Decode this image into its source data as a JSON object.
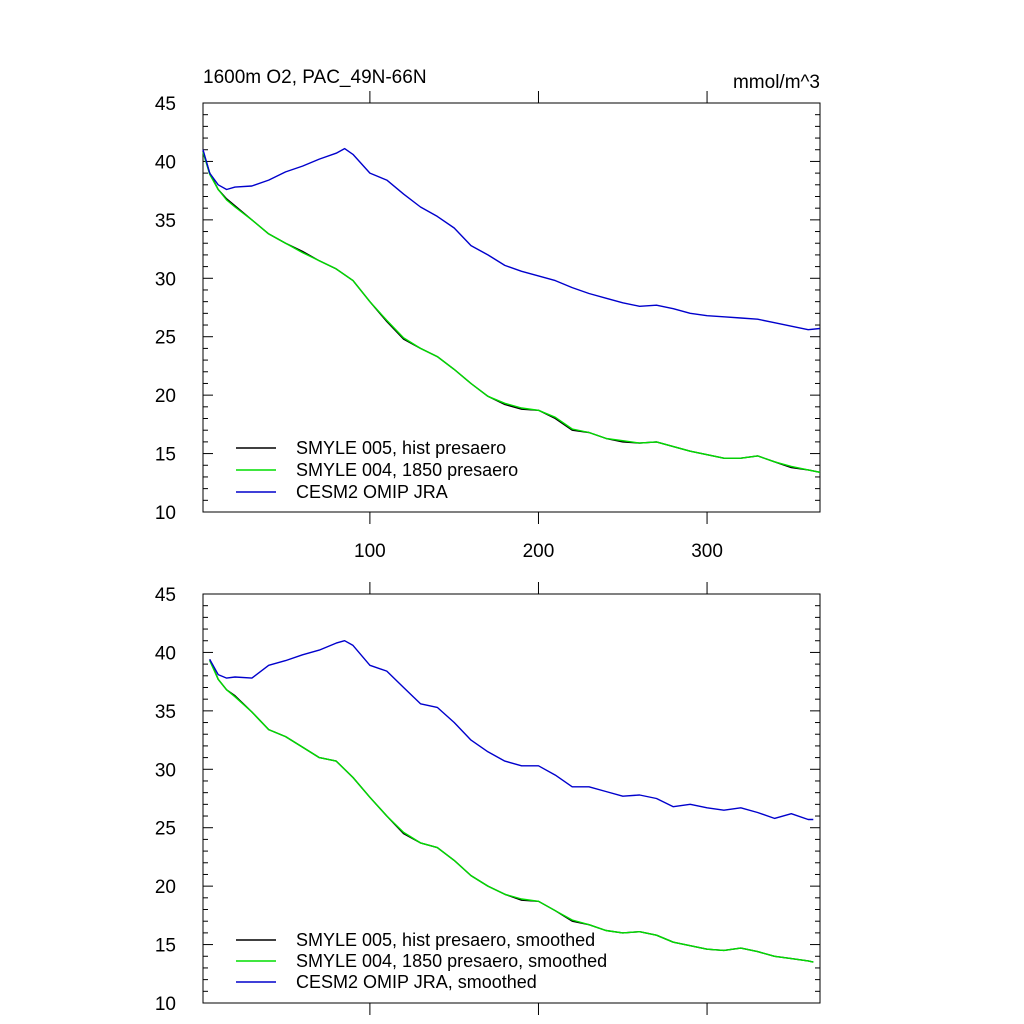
{
  "figure": {
    "title_left": "1600m O2, PAC_49N-66N",
    "title_right": "mmol/m^3"
  },
  "chart_data": [
    {
      "type": "line",
      "panel": "top",
      "title": "1600m O2, PAC_49N-66N",
      "units": "mmol/m^3",
      "xlim": [
        1,
        367
      ],
      "ylim": [
        10,
        45
      ],
      "x_ticks": [
        100,
        200,
        300
      ],
      "x_tick_labels": [
        "100",
        "200",
        "300"
      ],
      "y_ticks": [
        10,
        15,
        20,
        25,
        30,
        35,
        40,
        45
      ],
      "y_tick_labels": [
        "10",
        "15",
        "20",
        "25",
        "30",
        "35",
        "40",
        "45"
      ],
      "legend_position": "bottom-left",
      "series": [
        {
          "name": "SMYLE 005, hist presaero",
          "color": "#000000",
          "x": [
            1,
            5,
            10,
            15,
            20,
            30,
            40,
            50,
            60,
            70,
            80,
            90,
            100,
            110,
            120,
            130,
            140,
            150,
            160,
            170,
            180,
            190,
            200,
            210,
            220,
            230,
            240,
            250,
            260,
            270,
            280,
            290,
            300,
            310,
            320,
            330,
            340,
            350,
            360,
            367
          ],
          "values": [
            40.9,
            39.0,
            37.6,
            36.8,
            36.2,
            35.0,
            33.8,
            33.0,
            32.3,
            31.5,
            30.8,
            29.8,
            28.0,
            26.3,
            24.8,
            24.0,
            23.3,
            22.2,
            21.0,
            19.9,
            19.2,
            18.8,
            18.7,
            18.0,
            17.0,
            16.8,
            16.3,
            16.0,
            15.9,
            16.0,
            15.6,
            15.2,
            14.9,
            14.6,
            14.6,
            14.8,
            14.3,
            13.8,
            13.6,
            13.4
          ]
        },
        {
          "name": "SMYLE 004, 1850 presaero",
          "color": "#00dd00",
          "x": [
            1,
            5,
            10,
            15,
            20,
            30,
            40,
            50,
            60,
            70,
            80,
            90,
            100,
            110,
            120,
            130,
            140,
            150,
            160,
            170,
            180,
            190,
            200,
            210,
            220,
            230,
            240,
            250,
            260,
            270,
            280,
            290,
            300,
            310,
            320,
            330,
            340,
            350,
            360,
            367
          ],
          "values": [
            40.8,
            38.9,
            37.6,
            36.7,
            36.1,
            35.0,
            33.8,
            33.0,
            32.2,
            31.5,
            30.8,
            29.8,
            28.0,
            26.4,
            24.9,
            24.0,
            23.3,
            22.2,
            21.0,
            19.9,
            19.3,
            18.9,
            18.7,
            18.1,
            17.1,
            16.8,
            16.3,
            16.1,
            15.9,
            16.0,
            15.6,
            15.2,
            14.9,
            14.6,
            14.6,
            14.8,
            14.3,
            13.9,
            13.6,
            13.4
          ]
        },
        {
          "name": "CESM2 OMIP JRA",
          "color": "#0000cc",
          "x": [
            1,
            5,
            10,
            15,
            20,
            30,
            40,
            50,
            60,
            70,
            80,
            85,
            90,
            100,
            110,
            120,
            130,
            140,
            150,
            160,
            170,
            180,
            190,
            200,
            210,
            220,
            230,
            240,
            250,
            260,
            270,
            280,
            290,
            300,
            310,
            320,
            330,
            340,
            350,
            360,
            367
          ],
          "values": [
            41.0,
            39.0,
            38.0,
            37.6,
            37.8,
            37.9,
            38.4,
            39.1,
            39.6,
            40.2,
            40.7,
            41.1,
            40.6,
            39.0,
            38.4,
            37.2,
            36.1,
            35.3,
            34.3,
            32.8,
            32.0,
            31.1,
            30.6,
            30.2,
            29.8,
            29.2,
            28.7,
            28.3,
            27.9,
            27.6,
            27.7,
            27.4,
            27.0,
            26.8,
            26.7,
            26.6,
            26.5,
            26.2,
            25.9,
            25.6,
            25.7
          ]
        }
      ]
    },
    {
      "type": "line",
      "panel": "bottom",
      "xlim": [
        1,
        367
      ],
      "ylim": [
        10,
        45
      ],
      "x_ticks": [
        100,
        200,
        300
      ],
      "y_ticks": [
        10,
        15,
        20,
        25,
        30,
        35,
        40,
        45
      ],
      "y_tick_labels": [
        "10",
        "15",
        "20",
        "25",
        "30",
        "35",
        "40",
        "45"
      ],
      "legend_position": "bottom-left",
      "series": [
        {
          "name": "SMYLE 005, hist presaero, smoothed",
          "color": "#000000",
          "x": [
            5,
            10,
            15,
            20,
            30,
            40,
            50,
            60,
            70,
            80,
            90,
            100,
            110,
            120,
            130,
            140,
            150,
            160,
            170,
            180,
            190,
            200,
            210,
            220,
            230,
            240,
            250,
            260,
            270,
            280,
            290,
            300,
            310,
            320,
            330,
            340,
            350,
            360,
            363
          ],
          "values": [
            39.4,
            37.7,
            36.8,
            36.3,
            34.9,
            33.4,
            32.8,
            31.9,
            31.0,
            30.7,
            29.3,
            27.6,
            26.0,
            24.5,
            23.7,
            23.3,
            22.2,
            20.9,
            20.0,
            19.3,
            18.8,
            18.7,
            17.9,
            17.0,
            16.7,
            16.2,
            16.0,
            16.1,
            15.8,
            15.2,
            14.9,
            14.6,
            14.5,
            14.7,
            14.4,
            14.0,
            13.8,
            13.6,
            13.5
          ]
        },
        {
          "name": "SMYLE 004, 1850 presaero, smoothed",
          "color": "#00dd00",
          "x": [
            5,
            10,
            15,
            20,
            30,
            40,
            50,
            60,
            70,
            80,
            90,
            100,
            110,
            120,
            130,
            140,
            150,
            160,
            170,
            180,
            190,
            200,
            210,
            220,
            230,
            240,
            250,
            260,
            270,
            280,
            290,
            300,
            310,
            320,
            330,
            340,
            350,
            360,
            363
          ],
          "values": [
            39.3,
            37.7,
            36.8,
            36.2,
            34.9,
            33.4,
            32.8,
            31.9,
            31.0,
            30.7,
            29.3,
            27.6,
            26.0,
            24.6,
            23.7,
            23.3,
            22.2,
            20.9,
            20.0,
            19.3,
            18.9,
            18.7,
            17.9,
            17.1,
            16.7,
            16.2,
            16.0,
            16.1,
            15.8,
            15.2,
            14.9,
            14.6,
            14.5,
            14.7,
            14.4,
            14.0,
            13.8,
            13.6,
            13.5
          ]
        },
        {
          "name": "CESM2 OMIP JRA, smoothed",
          "color": "#0000cc",
          "x": [
            5,
            10,
            15,
            20,
            30,
            40,
            50,
            60,
            70,
            80,
            85,
            90,
            100,
            110,
            120,
            130,
            140,
            150,
            160,
            170,
            180,
            190,
            200,
            210,
            220,
            230,
            240,
            250,
            260,
            270,
            280,
            290,
            300,
            310,
            320,
            330,
            340,
            350,
            360,
            363
          ],
          "values": [
            39.4,
            38.1,
            37.8,
            37.9,
            37.8,
            38.9,
            39.3,
            39.8,
            40.2,
            40.8,
            41.0,
            40.6,
            38.9,
            38.4,
            37.0,
            35.6,
            35.3,
            34.0,
            32.5,
            31.5,
            30.7,
            30.3,
            30.3,
            29.5,
            28.5,
            28.5,
            28.1,
            27.7,
            27.8,
            27.5,
            26.8,
            27.0,
            26.7,
            26.5,
            26.7,
            26.3,
            25.8,
            26.2,
            25.7,
            25.7
          ]
        }
      ]
    }
  ]
}
